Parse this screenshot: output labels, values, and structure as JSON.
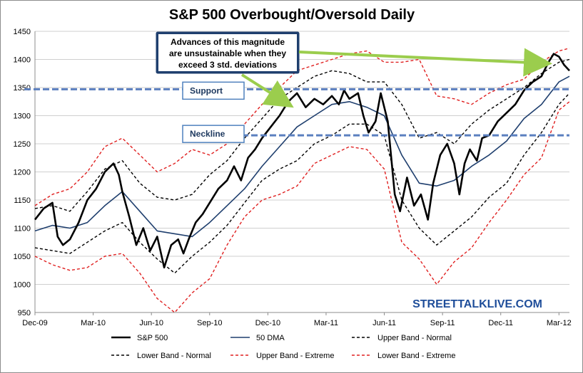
{
  "chart_data": {
    "type": "line",
    "title": "S&P 500 Overbought/Oversold Daily",
    "xlabel": "",
    "ylabel": "",
    "ylim": [
      950,
      1450
    ],
    "yticks": [
      950,
      1000,
      1050,
      1100,
      1150,
      1200,
      1250,
      1300,
      1350,
      1400,
      1450
    ],
    "x_tick_labels": [
      "Dec-09",
      "Mar-10",
      "Jun-10",
      "Sep-10",
      "Dec-10",
      "Mar-11",
      "Jun-11",
      "Sep-11",
      "Dec-11",
      "Mar-12"
    ],
    "grid": "horizontal",
    "legend_position": "bottom",
    "series": [
      {
        "name": "S&P 500",
        "color": "#000000",
        "style": "solid",
        "points": [
          [
            0,
            1115
          ],
          [
            0.5,
            1135
          ],
          [
            1,
            1145
          ],
          [
            1.3,
            1085
          ],
          [
            1.6,
            1070
          ],
          [
            2,
            1080
          ],
          [
            2.5,
            1110
          ],
          [
            3,
            1150
          ],
          [
            3.5,
            1170
          ],
          [
            4,
            1200
          ],
          [
            4.5,
            1215
          ],
          [
            4.8,
            1195
          ],
          [
            5,
            1165
          ],
          [
            5.4,
            1120
          ],
          [
            5.8,
            1070
          ],
          [
            6.2,
            1100
          ],
          [
            6.6,
            1060
          ],
          [
            7,
            1085
          ],
          [
            7.4,
            1030
          ],
          [
            7.8,
            1070
          ],
          [
            8.2,
            1080
          ],
          [
            8.5,
            1055
          ],
          [
            8.8,
            1080
          ],
          [
            9.2,
            1110
          ],
          [
            9.6,
            1125
          ],
          [
            10,
            1145
          ],
          [
            10.5,
            1170
          ],
          [
            11,
            1185
          ],
          [
            11.4,
            1210
          ],
          [
            11.8,
            1185
          ],
          [
            12.2,
            1225
          ],
          [
            12.6,
            1240
          ],
          [
            13,
            1260
          ],
          [
            13.5,
            1280
          ],
          [
            14,
            1300
          ],
          [
            14.5,
            1325
          ],
          [
            15,
            1340
          ],
          [
            15.5,
            1315
          ],
          [
            16,
            1330
          ],
          [
            16.5,
            1320
          ],
          [
            17,
            1335
          ],
          [
            17.4,
            1320
          ],
          [
            17.7,
            1345
          ],
          [
            18,
            1330
          ],
          [
            18.5,
            1340
          ],
          [
            18.8,
            1300
          ],
          [
            19.1,
            1270
          ],
          [
            19.5,
            1290
          ],
          [
            19.8,
            1340
          ],
          [
            20.2,
            1290
          ],
          [
            20.6,
            1160
          ],
          [
            20.9,
            1130
          ],
          [
            21.3,
            1190
          ],
          [
            21.7,
            1140
          ],
          [
            22.1,
            1160
          ],
          [
            22.5,
            1115
          ],
          [
            22.8,
            1180
          ],
          [
            23.2,
            1230
          ],
          [
            23.6,
            1250
          ],
          [
            24,
            1215
          ],
          [
            24.3,
            1160
          ],
          [
            24.6,
            1215
          ],
          [
            24.9,
            1240
          ],
          [
            25.3,
            1220
          ],
          [
            25.6,
            1260
          ],
          [
            26,
            1265
          ],
          [
            26.5,
            1290
          ],
          [
            27,
            1305
          ],
          [
            27.5,
            1320
          ],
          [
            28,
            1345
          ],
          [
            28.5,
            1360
          ],
          [
            29,
            1370
          ],
          [
            29.4,
            1395
          ],
          [
            29.7,
            1410
          ],
          [
            30,
            1405
          ],
          [
            30.3,
            1390
          ],
          [
            30.6,
            1380
          ]
        ]
      },
      {
        "name": "50 DMA",
        "color": "#1f3f6e",
        "style": "solid",
        "points": [
          [
            0,
            1095
          ],
          [
            1,
            1105
          ],
          [
            2,
            1100
          ],
          [
            3,
            1110
          ],
          [
            4,
            1140
          ],
          [
            5,
            1165
          ],
          [
            6,
            1130
          ],
          [
            7,
            1095
          ],
          [
            8,
            1090
          ],
          [
            9,
            1085
          ],
          [
            10,
            1110
          ],
          [
            11,
            1140
          ],
          [
            12,
            1170
          ],
          [
            13,
            1210
          ],
          [
            14,
            1245
          ],
          [
            15,
            1280
          ],
          [
            16,
            1300
          ],
          [
            17,
            1320
          ],
          [
            18,
            1325
          ],
          [
            19,
            1315
          ],
          [
            20,
            1300
          ],
          [
            21,
            1230
          ],
          [
            22,
            1180
          ],
          [
            23,
            1175
          ],
          [
            24,
            1185
          ],
          [
            25,
            1210
          ],
          [
            26,
            1230
          ],
          [
            27,
            1255
          ],
          [
            28,
            1295
          ],
          [
            29,
            1320
          ],
          [
            30,
            1360
          ],
          [
            30.6,
            1370
          ]
        ]
      },
      {
        "name": "Upper Band - Normal",
        "color": "#000000",
        "style": "dashed",
        "points": [
          [
            0,
            1135
          ],
          [
            1,
            1140
          ],
          [
            2,
            1130
          ],
          [
            3,
            1165
          ],
          [
            4,
            1205
          ],
          [
            5,
            1220
          ],
          [
            6,
            1180
          ],
          [
            7,
            1155
          ],
          [
            8,
            1150
          ],
          [
            9,
            1160
          ],
          [
            10,
            1195
          ],
          [
            11,
            1220
          ],
          [
            12,
            1260
          ],
          [
            13,
            1295
          ],
          [
            14,
            1330
          ],
          [
            15,
            1350
          ],
          [
            16,
            1370
          ],
          [
            17,
            1380
          ],
          [
            18,
            1375
          ],
          [
            19,
            1360
          ],
          [
            20,
            1360
          ],
          [
            21,
            1320
          ],
          [
            22,
            1260
          ],
          [
            23,
            1270
          ],
          [
            24,
            1250
          ],
          [
            25,
            1285
          ],
          [
            26,
            1310
          ],
          [
            27,
            1330
          ],
          [
            28,
            1350
          ],
          [
            29,
            1375
          ],
          [
            30,
            1395
          ],
          [
            30.6,
            1400
          ]
        ]
      },
      {
        "name": "Lower Band - Normal",
        "color": "#000000",
        "style": "dashed",
        "points": [
          [
            0,
            1065
          ],
          [
            1,
            1060
          ],
          [
            2,
            1055
          ],
          [
            3,
            1075
          ],
          [
            4,
            1095
          ],
          [
            5,
            1110
          ],
          [
            6,
            1075
          ],
          [
            7,
            1045
          ],
          [
            8,
            1020
          ],
          [
            9,
            1050
          ],
          [
            10,
            1075
          ],
          [
            11,
            1105
          ],
          [
            12,
            1145
          ],
          [
            13,
            1185
          ],
          [
            14,
            1205
          ],
          [
            15,
            1220
          ],
          [
            16,
            1250
          ],
          [
            17,
            1265
          ],
          [
            18,
            1285
          ],
          [
            19,
            1285
          ],
          [
            20,
            1265
          ],
          [
            21,
            1150
          ],
          [
            22,
            1100
          ],
          [
            23,
            1070
          ],
          [
            24,
            1095
          ],
          [
            25,
            1120
          ],
          [
            26,
            1155
          ],
          [
            27,
            1180
          ],
          [
            28,
            1230
          ],
          [
            29,
            1270
          ],
          [
            30,
            1320
          ],
          [
            30.6,
            1340
          ]
        ]
      },
      {
        "name": "Upper Band - Extreme",
        "color": "#e02020",
        "style": "dashed",
        "points": [
          [
            0,
            1140
          ],
          [
            1,
            1160
          ],
          [
            2,
            1170
          ],
          [
            3,
            1200
          ],
          [
            4,
            1245
          ],
          [
            5,
            1260
          ],
          [
            6,
            1230
          ],
          [
            7,
            1200
          ],
          [
            8,
            1215
          ],
          [
            9,
            1240
          ],
          [
            10,
            1230
          ],
          [
            11,
            1250
          ],
          [
            12,
            1285
          ],
          [
            13,
            1320
          ],
          [
            14,
            1350
          ],
          [
            15,
            1380
          ],
          [
            16,
            1390
          ],
          [
            17,
            1400
          ],
          [
            18,
            1410
          ],
          [
            19,
            1415
          ],
          [
            20,
            1395
          ],
          [
            21,
            1395
          ],
          [
            22,
            1400
          ],
          [
            23,
            1335
          ],
          [
            24,
            1330
          ],
          [
            25,
            1320
          ],
          [
            26,
            1340
          ],
          [
            27,
            1355
          ],
          [
            28,
            1365
          ],
          [
            29,
            1395
          ],
          [
            30,
            1415
          ],
          [
            30.6,
            1420
          ]
        ]
      },
      {
        "name": "Lower Band - Extreme",
        "color": "#e02020",
        "style": "dashed",
        "points": [
          [
            0,
            1050
          ],
          [
            1,
            1035
          ],
          [
            2,
            1025
          ],
          [
            3,
            1030
          ],
          [
            4,
            1050
          ],
          [
            5,
            1055
          ],
          [
            6,
            1020
          ],
          [
            7,
            975
          ],
          [
            8,
            950
          ],
          [
            9,
            985
          ],
          [
            10,
            1010
          ],
          [
            11,
            1070
          ],
          [
            12,
            1120
          ],
          [
            13,
            1150
          ],
          [
            14,
            1160
          ],
          [
            15,
            1175
          ],
          [
            16,
            1215
          ],
          [
            17,
            1230
          ],
          [
            18,
            1245
          ],
          [
            19,
            1240
          ],
          [
            20,
            1205
          ],
          [
            21,
            1075
          ],
          [
            22,
            1045
          ],
          [
            23,
            1000
          ],
          [
            24,
            1040
          ],
          [
            25,
            1065
          ],
          [
            26,
            1110
          ],
          [
            27,
            1150
          ],
          [
            28,
            1195
          ],
          [
            29,
            1225
          ],
          [
            30,
            1310
          ],
          [
            30.6,
            1325
          ]
        ]
      }
    ],
    "reference_lines": [
      {
        "label": "Support",
        "value": 1347
      },
      {
        "label": "Neckline",
        "value": 1265
      }
    ],
    "annotation": {
      "lines": [
        "Advances of this magnitude",
        "are unsustainable when they",
        "exceed 3 std. deviations"
      ]
    },
    "watermark": "STREETTALKLIVE.COM"
  },
  "colors": {
    "annotation_fill": "#1f3f6e",
    "box_border": "#4f81bd",
    "reference_line": "#5b7fbf",
    "arrow": "#9bcd4d"
  }
}
